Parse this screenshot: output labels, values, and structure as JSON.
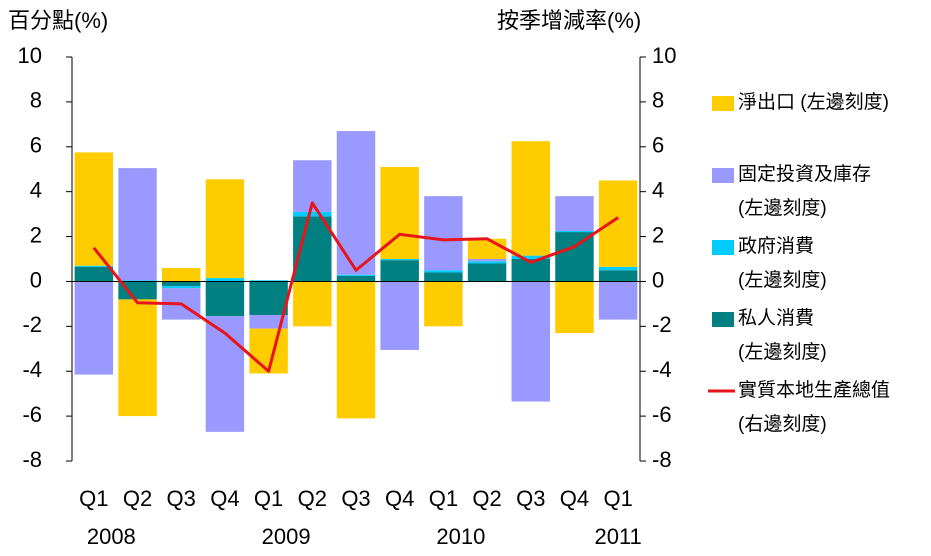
{
  "chart_data": {
    "type": "bar",
    "y_label": "百分點(%)",
    "y2_label": "按季增減率(%)",
    "categories": [
      "Q1",
      "Q2",
      "Q3",
      "Q4",
      "Q1",
      "Q2",
      "Q3",
      "Q4",
      "Q1",
      "Q2",
      "Q3",
      "Q4",
      "Q1"
    ],
    "year_labels": [
      "2008",
      "2009",
      "2010",
      "2011"
    ],
    "ylim": [
      -8,
      10
    ],
    "yticks": [
      -8,
      -6,
      -4,
      -2,
      0,
      2,
      4,
      6,
      8,
      10
    ],
    "y2lim": [
      -8,
      10
    ],
    "y2ticks": [
      -8,
      -6,
      -4,
      -2,
      0,
      2,
      4,
      6,
      8,
      10
    ],
    "stacked": true,
    "series": [
      {
        "name": "私人消費\n(左邊刻度)",
        "color": "#008080",
        "values": [
          0.65,
          -0.8,
          -0.2,
          -1.55,
          -1.5,
          2.9,
          0.25,
          0.95,
          0.4,
          0.8,
          1.0,
          2.2,
          0.5
        ]
      },
      {
        "name": "政府消費\n(左邊刻度)",
        "color": "#00ccff",
        "values": [
          0.05,
          0.05,
          -0.1,
          0.15,
          0.05,
          0.2,
          0.05,
          0.05,
          0.1,
          0.1,
          0.15,
          0.05,
          0.15
        ]
      },
      {
        "name": "固定投資及庫存\n(左邊刻度)",
        "color": "#9999ff",
        "values": [
          -4.15,
          5.0,
          -1.4,
          -5.15,
          -0.6,
          2.3,
          6.4,
          -3.05,
          3.3,
          0.1,
          -5.35,
          1.55,
          -1.7
        ]
      },
      {
        "name": "淨出口 (左邊刻度)",
        "color": "#ffcc00",
        "values": [
          5.05,
          -5.2,
          0.6,
          4.4,
          -2.0,
          -2.0,
          -6.1,
          4.1,
          -2.0,
          0.9,
          5.1,
          -2.3,
          3.85
        ]
      },
      {
        "name": "實質本地生產總值\n(右邊刻度)",
        "color": "#e8141c",
        "type": "line",
        "axis": "y2",
        "values": [
          1.5,
          -0.95,
          -1.0,
          -2.3,
          -4.0,
          3.5,
          0.5,
          2.1,
          1.85,
          1.9,
          0.85,
          1.55,
          2.85
        ]
      }
    ]
  }
}
